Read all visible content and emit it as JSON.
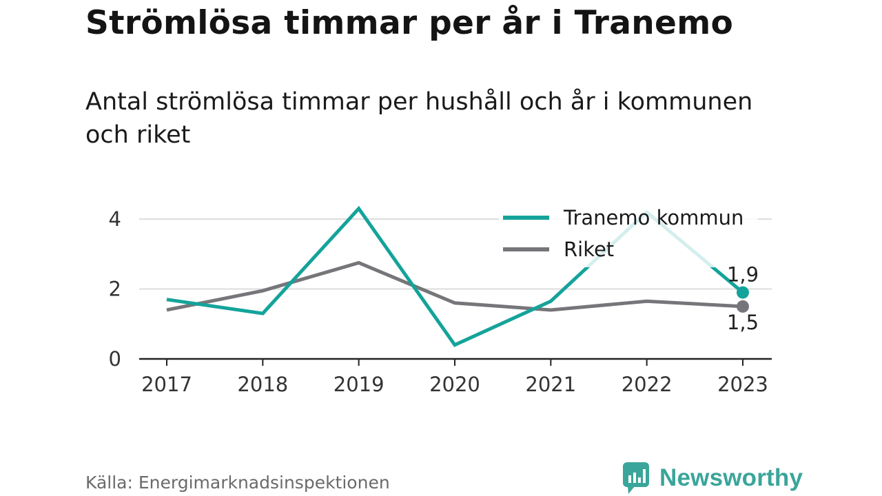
{
  "header": {
    "title": "Strömlösa timmar per år i Tranemo",
    "subtitle": "Antal strömlösa timmar per hushåll och år i kommunen och riket"
  },
  "footer": {
    "source": "Källa: Energimarknadsinspektionen",
    "brand": "Newsworthy"
  },
  "colors": {
    "tranemo": "#14a39a",
    "riket": "#76767a",
    "grid": "#dcdcdc",
    "axis": "#222222",
    "brand": "#3aa59a"
  },
  "chart_data": {
    "type": "line",
    "title": "",
    "xlabel": "",
    "ylabel": "",
    "categories": [
      "2017",
      "2018",
      "2019",
      "2020",
      "2021",
      "2022",
      "2023"
    ],
    "ylim": [
      0,
      4.5
    ],
    "yticks": [
      0,
      2,
      4
    ],
    "grid": true,
    "legend_position": "top-right",
    "series": [
      {
        "name": "Tranemo kommun",
        "values": [
          1.7,
          1.3,
          4.3,
          0.4,
          1.65,
          4.2,
          1.9
        ],
        "end_label": "1,9"
      },
      {
        "name": "Riket",
        "values": [
          1.4,
          1.95,
          2.75,
          1.6,
          1.4,
          1.65,
          1.5
        ],
        "end_label": "1,5"
      }
    ]
  }
}
